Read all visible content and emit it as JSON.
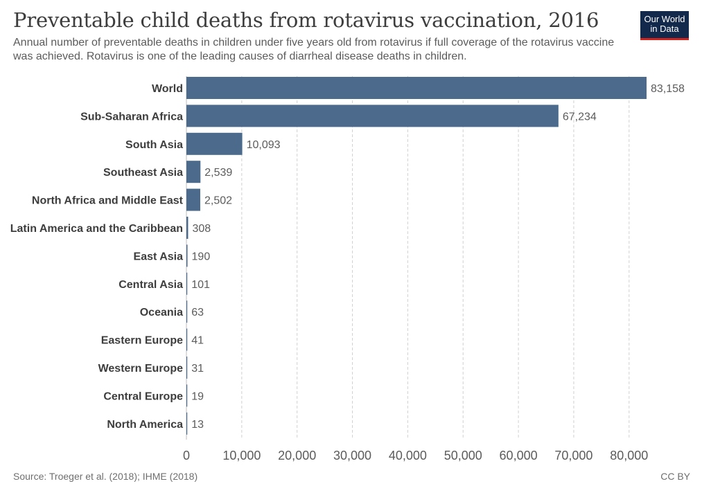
{
  "header": {
    "title": "Preventable child deaths from rotavirus vaccination, 2016",
    "subtitle": "Annual number of preventable deaths in children under five years old from rotavirus if full coverage of the rotavirus vaccine was achieved. Rotavirus is one of the leading causes of diarrheal disease deaths in children."
  },
  "logo": {
    "line1": "Our World",
    "line2": "in Data"
  },
  "footer": {
    "source": "Source: Troeger et al. (2018); IHME (2018)",
    "license": "CC BY"
  },
  "colors": {
    "bar": "#4c6a8c",
    "grid": "#d0d0d0",
    "text": "#3d3d3d",
    "logo_bg": "#13294b",
    "logo_accent": "#ce261e"
  },
  "chart_data": {
    "type": "bar",
    "orientation": "horizontal",
    "categories": [
      "World",
      "Sub-Saharan Africa",
      "South Asia",
      "Southeast Asia",
      "North Africa and Middle East",
      "Latin America and the Caribbean",
      "East Asia",
      "Central Asia",
      "Oceania",
      "Eastern Europe",
      "Western Europe",
      "Central Europe",
      "North America"
    ],
    "values": [
      83158,
      67234,
      10093,
      2539,
      2502,
      308,
      190,
      101,
      63,
      41,
      31,
      19,
      13
    ],
    "value_labels": [
      "83,158",
      "67,234",
      "10,093",
      "2,539",
      "2,502",
      "308",
      "190",
      "101",
      "63",
      "41",
      "31",
      "19",
      "13"
    ],
    "xlim": [
      0,
      83158
    ],
    "x_ticks": [
      0,
      10000,
      20000,
      30000,
      40000,
      50000,
      60000,
      70000,
      80000
    ],
    "x_tick_labels": [
      "0",
      "10,000",
      "20,000",
      "30,000",
      "40,000",
      "50,000",
      "60,000",
      "70,000",
      "80,000"
    ],
    "grid": true,
    "grid_style": "dashed vertical"
  }
}
